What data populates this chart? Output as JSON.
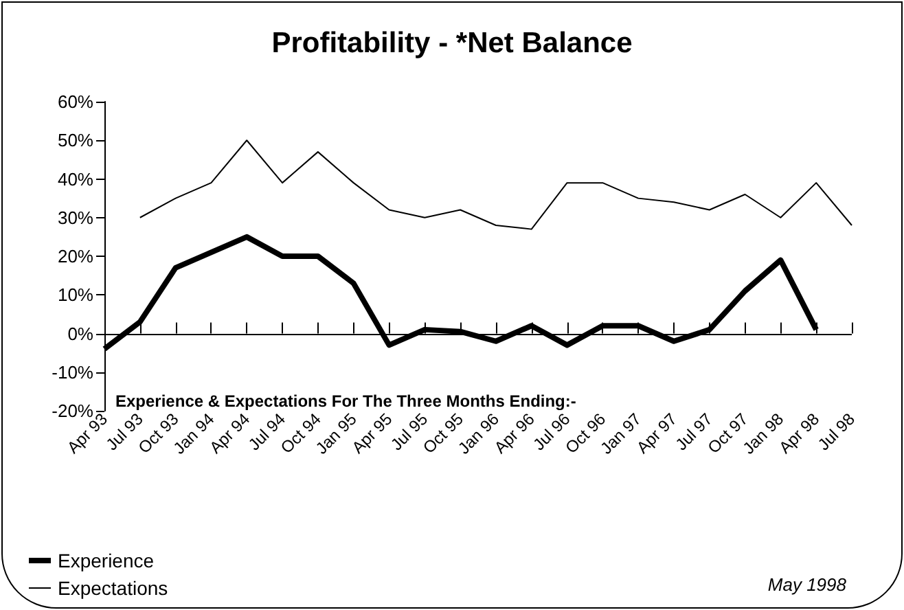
{
  "chart_data": {
    "type": "line",
    "title": "Profitability - *Net Balance",
    "categories": [
      "Apr 93",
      "Jul 93",
      "Oct 93",
      "Jan 94",
      "Apr 94",
      "Jul 94",
      "Oct 94",
      "Jan 95",
      "Apr 95",
      "Jul 95",
      "Oct 95",
      "Jan 96",
      "Apr 96",
      "Jul 96",
      "Oct 96",
      "Jan 97",
      "Apr 97",
      "Jul 97",
      "Oct 97",
      "Jan 98",
      "Apr 98",
      "Jul 98"
    ],
    "series": [
      {
        "name": "Experience",
        "color": "#000000",
        "values": [
          -4,
          3,
          17,
          21,
          25,
          20,
          20,
          13,
          -3,
          1,
          0.5,
          -2,
          2,
          -3,
          2,
          2,
          -2,
          1,
          11,
          19,
          1,
          null
        ]
      },
      {
        "name": "Expectations",
        "color": "#000000",
        "values": [
          null,
          30,
          35,
          39,
          50,
          39,
          47,
          39,
          32,
          30,
          32,
          28,
          27,
          39,
          39,
          35,
          34,
          32,
          36,
          30,
          39,
          28
        ]
      }
    ],
    "ylim": [
      -20,
      60
    ],
    "yticks": [
      {
        "value": -20,
        "label": "-20%"
      },
      {
        "value": -10,
        "label": "-10%"
      },
      {
        "value": 0,
        "label": "0%"
      },
      {
        "value": 10,
        "label": "10%"
      },
      {
        "value": 20,
        "label": "20%"
      },
      {
        "value": 30,
        "label": "30%"
      },
      {
        "value": 40,
        "label": "40%"
      },
      {
        "value": 50,
        "label": "50%"
      },
      {
        "value": 60,
        "label": "60%"
      }
    ],
    "ref_lines": [
      {
        "axis": "y",
        "value": 0
      }
    ],
    "annotations": [
      "Experience & Expectations For The Three Months Ending:-",
      "May 1998"
    ],
    "grid": false,
    "legend": "bottom left",
    "marker": "none",
    "line_style": "solid"
  }
}
